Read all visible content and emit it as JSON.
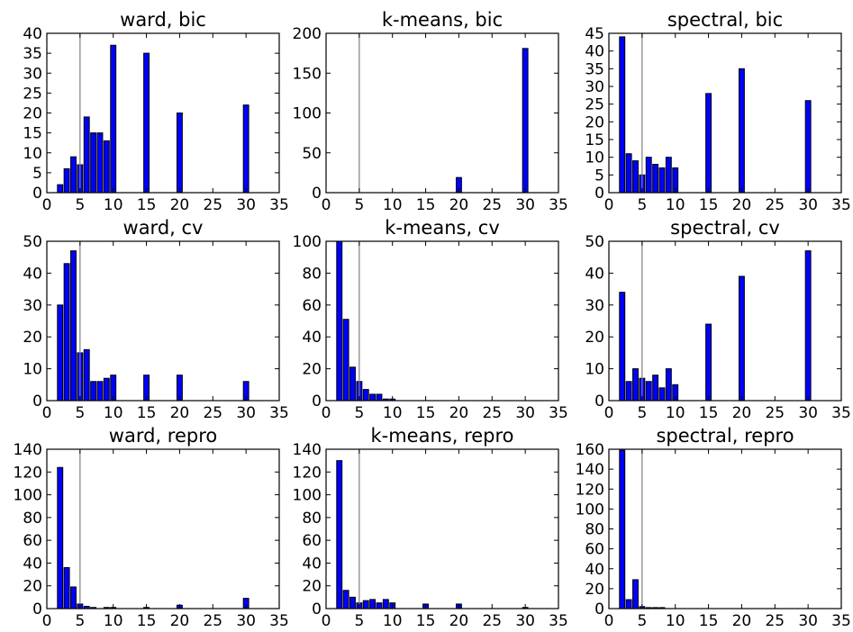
{
  "colors": {
    "bar": "#0000ff",
    "bar_edge": "#000000",
    "reference_line": "#808080"
  },
  "chart_data": [
    {
      "type": "bar",
      "title": "ward, bic",
      "xlim": [
        0,
        35
      ],
      "ylim": [
        0,
        40
      ],
      "xticks": [
        0,
        5,
        10,
        15,
        20,
        25,
        30,
        35
      ],
      "yticks": [
        0,
        5,
        10,
        15,
        20,
        25,
        30,
        35,
        40
      ],
      "vline_x": 5,
      "x": [
        2,
        3,
        4,
        5,
        6,
        7,
        8,
        9,
        10,
        15,
        20,
        30
      ],
      "values": [
        2,
        6,
        9,
        7,
        19,
        15,
        15,
        13,
        37,
        35,
        20,
        22
      ]
    },
    {
      "type": "bar",
      "title": "k-means, bic",
      "xlim": [
        0,
        35
      ],
      "ylim": [
        0,
        200
      ],
      "xticks": [
        0,
        5,
        10,
        15,
        20,
        25,
        30,
        35
      ],
      "yticks": [
        0,
        50,
        100,
        150,
        200
      ],
      "vline_x": 5,
      "x": [
        20,
        30
      ],
      "values": [
        19,
        181
      ]
    },
    {
      "type": "bar",
      "title": "spectral, bic",
      "xlim": [
        0,
        35
      ],
      "ylim": [
        0,
        45
      ],
      "xticks": [
        0,
        5,
        10,
        15,
        20,
        25,
        30,
        35
      ],
      "yticks": [
        0,
        5,
        10,
        15,
        20,
        25,
        30,
        35,
        40,
        45
      ],
      "vline_x": 5,
      "x": [
        2,
        3,
        4,
        5,
        6,
        7,
        8,
        9,
        10,
        15,
        20,
        30
      ],
      "values": [
        44,
        11,
        9,
        5,
        10,
        8,
        7,
        10,
        7,
        28,
        35,
        26
      ]
    },
    {
      "type": "bar",
      "title": "ward, cv",
      "xlim": [
        0,
        35
      ],
      "ylim": [
        0,
        50
      ],
      "xticks": [
        0,
        5,
        10,
        15,
        20,
        25,
        30,
        35
      ],
      "yticks": [
        0,
        10,
        20,
        30,
        40,
        50
      ],
      "vline_x": 5,
      "x": [
        2,
        3,
        4,
        5,
        6,
        7,
        8,
        9,
        10,
        15,
        20,
        30
      ],
      "values": [
        30,
        43,
        47,
        15,
        16,
        6,
        6,
        7,
        8,
        8,
        8,
        6
      ]
    },
    {
      "type": "bar",
      "title": "k-means, cv",
      "xlim": [
        0,
        35
      ],
      "ylim": [
        0,
        100
      ],
      "xticks": [
        0,
        5,
        10,
        15,
        20,
        25,
        30,
        35
      ],
      "yticks": [
        0,
        20,
        40,
        60,
        80,
        100
      ],
      "vline_x": 5,
      "x": [
        2,
        3,
        4,
        5,
        6,
        7,
        8,
        9,
        10
      ],
      "values": [
        100,
        51,
        21,
        12,
        7,
        4,
        4,
        1,
        1
      ]
    },
    {
      "type": "bar",
      "title": "spectral, cv",
      "xlim": [
        0,
        35
      ],
      "ylim": [
        0,
        50
      ],
      "xticks": [
        0,
        5,
        10,
        15,
        20,
        25,
        30,
        35
      ],
      "yticks": [
        0,
        10,
        20,
        30,
        40,
        50
      ],
      "vline_x": 5,
      "x": [
        2,
        3,
        4,
        5,
        6,
        7,
        8,
        9,
        10,
        15,
        20,
        30
      ],
      "values": [
        34,
        6,
        10,
        7,
        6,
        8,
        4,
        10,
        5,
        24,
        39,
        47
      ]
    },
    {
      "type": "bar",
      "title": "ward, repro",
      "xlim": [
        0,
        35
      ],
      "ylim": [
        0,
        140
      ],
      "xticks": [
        0,
        5,
        10,
        15,
        20,
        25,
        30,
        35
      ],
      "yticks": [
        0,
        20,
        40,
        60,
        80,
        100,
        120,
        140
      ],
      "vline_x": 5,
      "x": [
        2,
        3,
        4,
        5,
        6,
        7,
        9,
        10,
        15,
        20,
        30
      ],
      "values": [
        124,
        36,
        19,
        4,
        2,
        1,
        1,
        1,
        1,
        3,
        9
      ]
    },
    {
      "type": "bar",
      "title": "k-means, repro",
      "xlim": [
        0,
        35
      ],
      "ylim": [
        0,
        140
      ],
      "xticks": [
        0,
        5,
        10,
        15,
        20,
        25,
        30,
        35
      ],
      "yticks": [
        0,
        20,
        40,
        60,
        80,
        100,
        120,
        140
      ],
      "vline_x": 5,
      "x": [
        2,
        3,
        4,
        5,
        6,
        7,
        8,
        9,
        10,
        15,
        20,
        30
      ],
      "values": [
        130,
        16,
        10,
        5,
        7,
        8,
        5,
        8,
        5,
        4,
        4,
        1
      ]
    },
    {
      "type": "bar",
      "title": "spectral, repro",
      "xlim": [
        0,
        35
      ],
      "ylim": [
        0,
        160
      ],
      "xticks": [
        0,
        5,
        10,
        15,
        20,
        25,
        30,
        35
      ],
      "yticks": [
        0,
        20,
        40,
        60,
        80,
        100,
        120,
        140,
        160
      ],
      "vline_x": 5,
      "x": [
        2,
        3,
        4,
        5,
        6,
        7,
        8
      ],
      "values": [
        159,
        9,
        29,
        2,
        1,
        1,
        1
      ]
    }
  ]
}
